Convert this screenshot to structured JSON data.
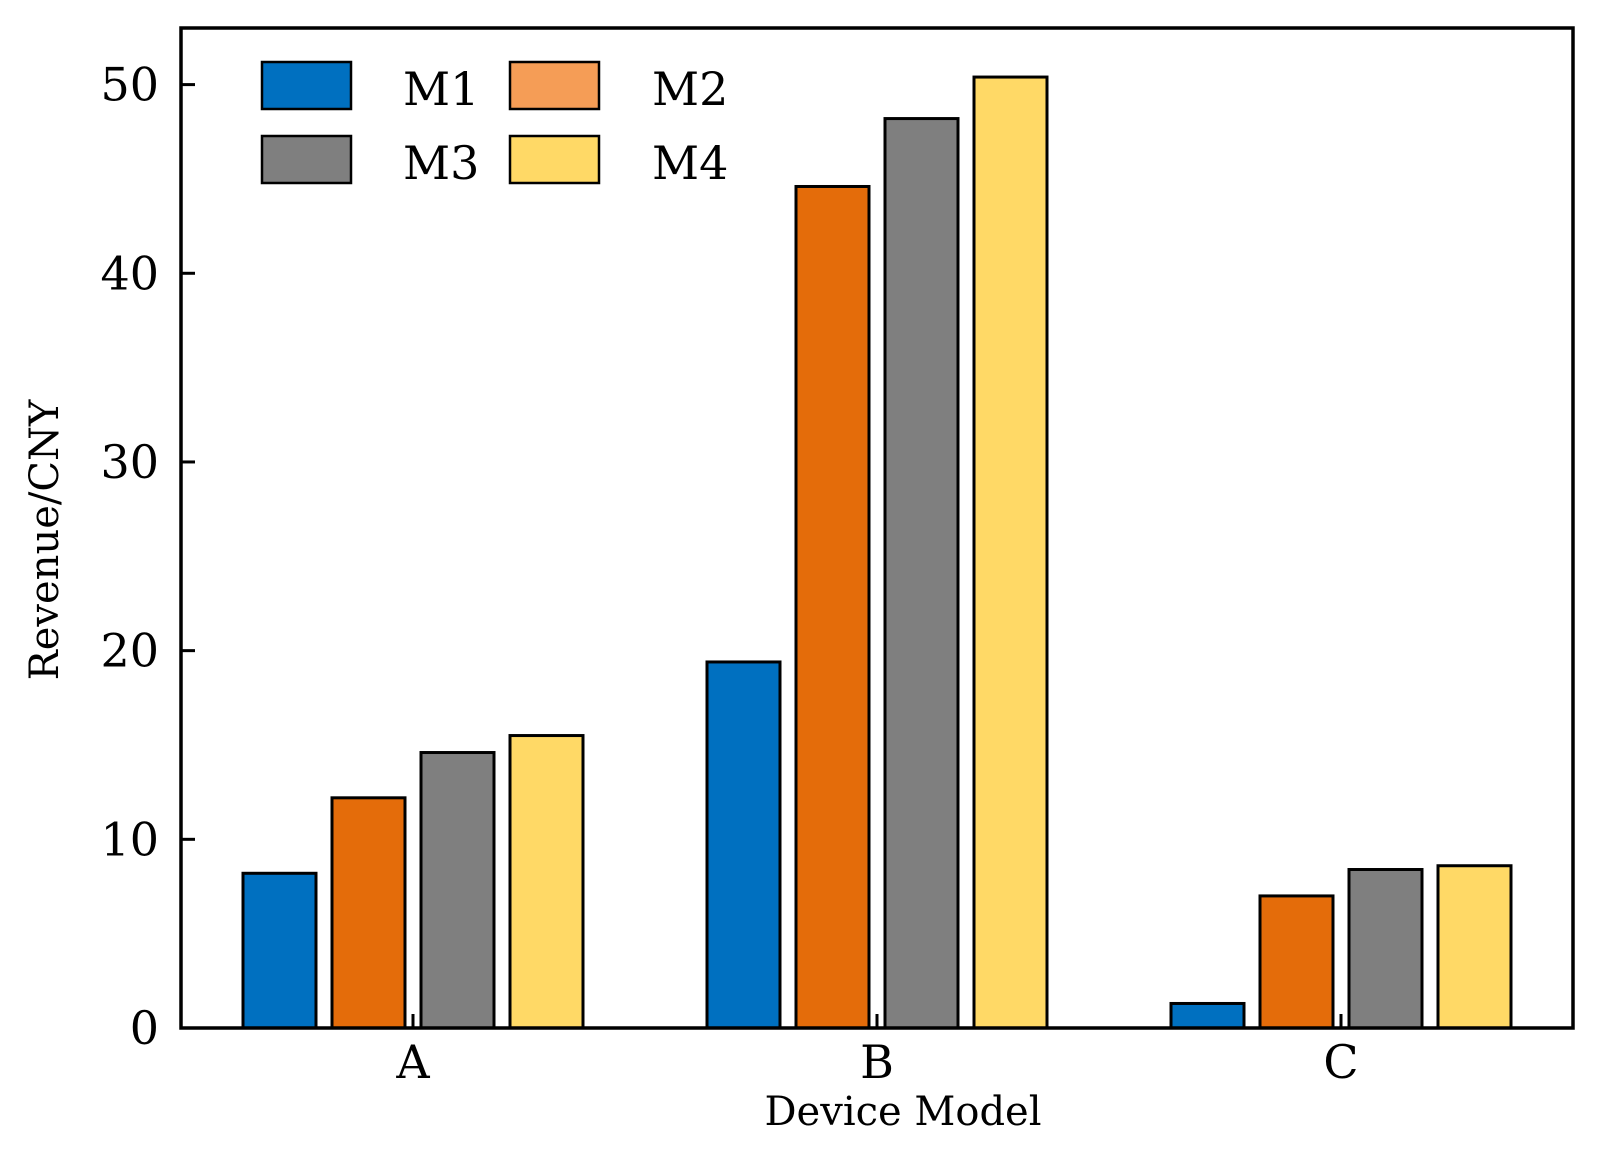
{
  "chart_data": {
    "type": "bar",
    "title": "",
    "xlabel": "Device Model",
    "ylabel": "Revenue/CNY",
    "categories": [
      "A",
      "B",
      "C"
    ],
    "ylim": [
      0,
      53
    ],
    "yticks": [
      0,
      10,
      20,
      30,
      40,
      50
    ],
    "grid": false,
    "legend_position": "top-left",
    "series": [
      {
        "name": "M1",
        "color": "#0070C0",
        "values": [
          8.2,
          19.4,
          1.3
        ]
      },
      {
        "name": "M2",
        "color": "#E46C0A",
        "legend_color": "#F59D56",
        "values": [
          12.2,
          44.6,
          7.0
        ]
      },
      {
        "name": "M3",
        "color": "#7F7F7F",
        "values": [
          14.6,
          48.2,
          8.4
        ]
      },
      {
        "name": "M4",
        "color": "#FFD966",
        "values": [
          15.5,
          50.4,
          8.6
        ]
      }
    ]
  }
}
